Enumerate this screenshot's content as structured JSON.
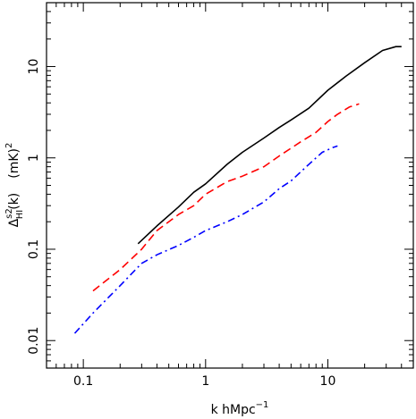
{
  "chart_data": {
    "type": "line",
    "title": "",
    "xlabel_main": "k  hMpc",
    "xlabel_sup": "−1",
    "ylabel": {
      "delta": "Δ",
      "sup": "s2",
      "sub": "HI",
      "arg": "(k)",
      "unit": "(mK)",
      "unit_sup": "2"
    },
    "x_scale": "log",
    "y_scale": "log",
    "xlim": [
      0.05,
      50
    ],
    "ylim": [
      0.005,
      50
    ],
    "x_tick_labels": [
      {
        "value": 0.1,
        "label": "0.1"
      },
      {
        "value": 1,
        "label": "1"
      },
      {
        "value": 10,
        "label": "10"
      }
    ],
    "y_tick_labels": [
      {
        "value": 0.01,
        "label": "0.01"
      },
      {
        "value": 0.1,
        "label": "0.1"
      },
      {
        "value": 1,
        "label": "1"
      },
      {
        "value": 10,
        "label": "10"
      }
    ],
    "grid": false,
    "legend": "none",
    "series": [
      {
        "color": "#000000",
        "dash": "solid",
        "x": [
          0.28,
          0.4,
          0.6,
          0.8,
          1.0,
          1.5,
          2.0,
          3.0,
          4.0,
          5.0,
          7.0,
          10.0,
          14.0,
          20.0,
          28.0,
          36.0,
          40.0
        ],
        "y": [
          0.115,
          0.18,
          0.29,
          0.42,
          0.52,
          0.85,
          1.15,
          1.65,
          2.15,
          2.6,
          3.5,
          5.5,
          7.8,
          11.0,
          15.0,
          16.5,
          16.5
        ]
      },
      {
        "color": "#ff0000",
        "dash": "dashed",
        "x": [
          0.12,
          0.2,
          0.3,
          0.4,
          0.6,
          0.8,
          1.0,
          1.5,
          2.0,
          3.0,
          4.0,
          6.0,
          8.0,
          10.0,
          12.0,
          15.0,
          18.0
        ],
        "y": [
          0.035,
          0.06,
          0.1,
          0.16,
          0.24,
          0.3,
          0.4,
          0.55,
          0.63,
          0.8,
          1.05,
          1.5,
          1.9,
          2.5,
          3.0,
          3.6,
          3.9
        ]
      },
      {
        "color": "#0000ff",
        "dash": "dashdot",
        "x": [
          0.085,
          0.12,
          0.2,
          0.3,
          0.4,
          0.6,
          0.8,
          1.0,
          1.5,
          2.0,
          3.0,
          4.0,
          5.0,
          7.0,
          9.0,
          11.0,
          12.0
        ],
        "y": [
          0.012,
          0.02,
          0.04,
          0.07,
          0.087,
          0.11,
          0.135,
          0.16,
          0.2,
          0.24,
          0.33,
          0.46,
          0.56,
          0.85,
          1.15,
          1.3,
          1.35
        ]
      }
    ]
  }
}
